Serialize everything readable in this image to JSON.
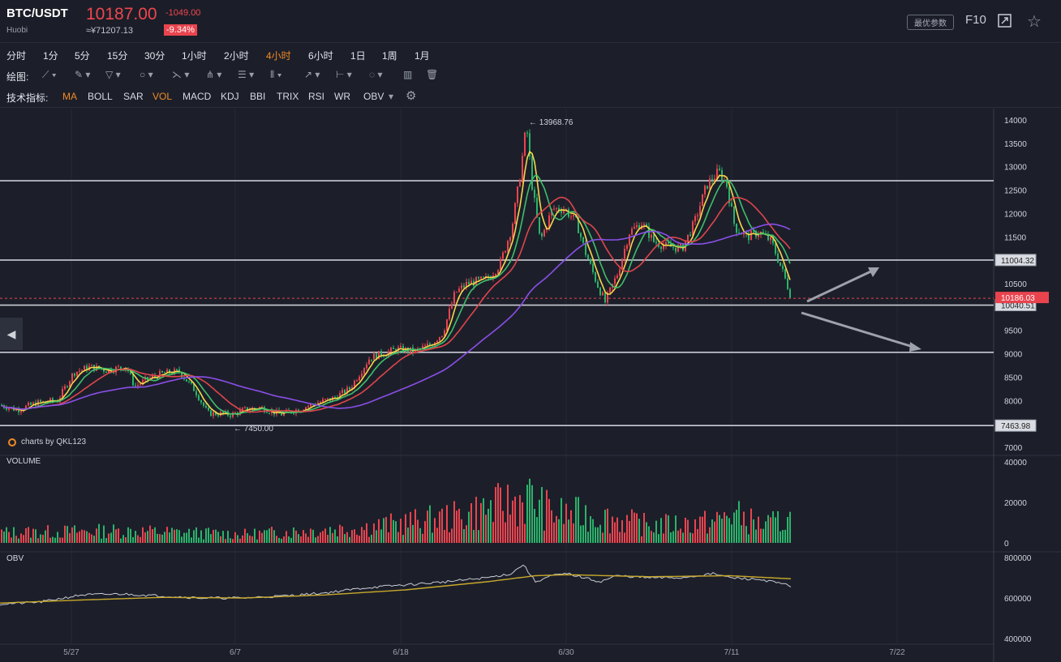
{
  "header": {
    "pair": "BTC/USDT",
    "exchange": "Huobi",
    "price": "10187.00",
    "price_cny": "≈¥71207.13",
    "change": "-1049.00",
    "change_pct": "-9.34%",
    "best_params": "最优参数",
    "f10": "F10"
  },
  "timeframes": [
    "分时",
    "1分",
    "5分",
    "15分",
    "30分",
    "1小时",
    "2小时",
    "4小时",
    "6小时",
    "1日",
    "1周",
    "1月"
  ],
  "active_timeframe": "4小时",
  "drawing_label": "绘图:",
  "indicators_label": "技术指标:",
  "indicators": [
    "MA",
    "BOLL",
    "SAR",
    "VOL",
    "MACD",
    "KDJ",
    "BBI",
    "TRIX",
    "RSI",
    "WR",
    "OBV"
  ],
  "active_indicators": [
    "MA",
    "VOL"
  ],
  "brand": "charts by QKL123",
  "colors": {
    "up": "#e9444e",
    "down": "#2bb36b",
    "accent": "#f08a24",
    "ma5": "#f5d84b",
    "ma10": "#3fbf6b",
    "ma20": "#e0454c",
    "ma60": "#8a4fe8",
    "obv": "#c9ccd4",
    "obv_ma": "#c8a82a"
  },
  "chart_data": [
    {
      "type": "candlestick",
      "title": "BTC/USDT 4小时",
      "price_axis_ticks": [
        14000,
        13500,
        13000,
        12500,
        12000,
        11500,
        11000,
        10500,
        10000,
        9500,
        9000,
        8500,
        8000,
        7500,
        7000
      ],
      "ylim": [
        6950,
        14100
      ],
      "x_ticks": [
        "5/27",
        "6/7",
        "6/18",
        "6/30",
        "7/11",
        "7/22"
      ],
      "horizontal_levels": [
        12700,
        11004.32,
        10040.51,
        9030,
        7463.98
      ],
      "level_labels": [
        "11004.32",
        "10040.51",
        "7463.98"
      ],
      "current_price_label": "10186.03",
      "current_price": 10186.03,
      "high_annotation": "← 13968.76",
      "high_value": 13968.76,
      "low_annotation": "← 7450.00",
      "low_value": 7450.0,
      "close_path": [
        [
          0,
          7900
        ],
        [
          20,
          7800
        ],
        [
          45,
          7950
        ],
        [
          70,
          8000
        ],
        [
          90,
          8600
        ],
        [
          110,
          8720
        ],
        [
          130,
          8650
        ],
        [
          155,
          8720
        ],
        [
          165,
          8300
        ],
        [
          180,
          8450
        ],
        [
          200,
          8580
        ],
        [
          220,
          8620
        ],
        [
          240,
          8200
        ],
        [
          255,
          7730
        ],
        [
          285,
          7700
        ],
        [
          300,
          7800
        ],
        [
          320,
          7850
        ],
        [
          345,
          7700
        ],
        [
          370,
          7830
        ],
        [
          390,
          7950
        ],
        [
          410,
          8050
        ],
        [
          430,
          8250
        ],
        [
          455,
          8920
        ],
        [
          470,
          9000
        ],
        [
          490,
          9100
        ],
        [
          510,
          9050
        ],
        [
          530,
          9200
        ],
        [
          545,
          9450
        ],
        [
          560,
          10300
        ],
        [
          575,
          10500
        ],
        [
          600,
          10600
        ],
        [
          615,
          10900
        ],
        [
          630,
          11700
        ],
        [
          640,
          12800
        ],
        [
          648,
          13900
        ],
        [
          655,
          12600
        ],
        [
          665,
          11400
        ],
        [
          680,
          12100
        ],
        [
          695,
          12100
        ],
        [
          710,
          11800
        ],
        [
          720,
          11200
        ],
        [
          735,
          10500
        ],
        [
          745,
          10100
        ],
        [
          760,
          10700
        ],
        [
          775,
          11600
        ],
        [
          790,
          11800
        ],
        [
          805,
          11400
        ],
        [
          820,
          11300
        ],
        [
          840,
          11250
        ],
        [
          855,
          11800
        ],
        [
          870,
          12600
        ],
        [
          885,
          12900
        ],
        [
          895,
          12600
        ],
        [
          905,
          11700
        ],
        [
          920,
          11500
        ],
        [
          935,
          11600
        ],
        [
          950,
          11400
        ],
        [
          965,
          10700
        ],
        [
          975,
          10187
        ]
      ],
      "ma_series": [
        {
          "name": "MA5",
          "color": "#f5d84b"
        },
        {
          "name": "MA10",
          "color": "#3fbf6b"
        },
        {
          "name": "MA20",
          "color": "#e0454c"
        },
        {
          "name": "MA60",
          "color": "#8a4fe8"
        }
      ]
    },
    {
      "type": "bar",
      "title": "VOLUME",
      "y_ticks": [
        40000,
        20000,
        0
      ],
      "ylim": [
        0,
        40000
      ],
      "profile": [
        [
          0,
          6000
        ],
        [
          150,
          7000
        ],
        [
          300,
          5000
        ],
        [
          450,
          9000
        ],
        [
          560,
          15000
        ],
        [
          620,
          22000
        ],
        [
          650,
          26000
        ],
        [
          680,
          17000
        ],
        [
          730,
          16000
        ],
        [
          800,
          10000
        ],
        [
          880,
          12000
        ],
        [
          900,
          17000
        ],
        [
          940,
          10000
        ],
        [
          975,
          14000
        ]
      ]
    },
    {
      "type": "line",
      "title": "OBV",
      "y_ticks": [
        800000,
        600000,
        400000
      ],
      "ylim": [
        400000,
        800000
      ],
      "obv_path": [
        [
          0,
          570000
        ],
        [
          50,
          580000
        ],
        [
          100,
          615000
        ],
        [
          150,
          620000
        ],
        [
          200,
          610000
        ],
        [
          250,
          600000
        ],
        [
          300,
          600000
        ],
        [
          350,
          610000
        ],
        [
          400,
          625000
        ],
        [
          450,
          650000
        ],
        [
          500,
          665000
        ],
        [
          550,
          680000
        ],
        [
          600,
          700000
        ],
        [
          630,
          720000
        ],
        [
          645,
          765000
        ],
        [
          660,
          680000
        ],
        [
          680,
          710000
        ],
        [
          700,
          720000
        ],
        [
          720,
          700000
        ],
        [
          740,
          680000
        ],
        [
          760,
          710000
        ],
        [
          800,
          700000
        ],
        [
          840,
          700000
        ],
        [
          880,
          720000
        ],
        [
          900,
          700000
        ],
        [
          940,
          690000
        ],
        [
          975,
          660000
        ]
      ],
      "obv_ma_path": [
        [
          0,
          575000
        ],
        [
          100,
          590000
        ],
        [
          200,
          603000
        ],
        [
          300,
          600000
        ],
        [
          400,
          615000
        ],
        [
          500,
          640000
        ],
        [
          600,
          680000
        ],
        [
          660,
          710000
        ],
        [
          700,
          715000
        ],
        [
          800,
          705000
        ],
        [
          900,
          710000
        ],
        [
          975,
          695000
        ]
      ]
    }
  ]
}
